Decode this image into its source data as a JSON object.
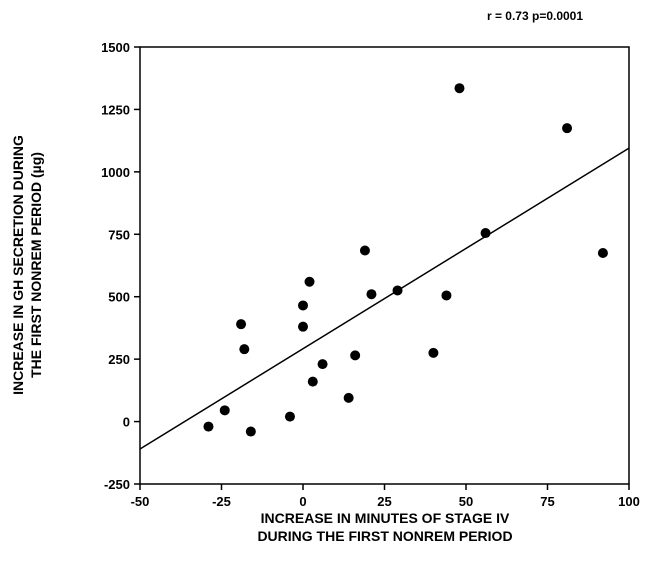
{
  "chart_data": {
    "type": "scatter",
    "annotation": "r = 0.73 p=0.0001",
    "xlabel_lines": [
      "INCREASE IN MINUTES OF STAGE IV",
      "DURING THE FIRST NONREM PERIOD"
    ],
    "ylabel_lines": [
      "INCREASE IN GH SECRETION DURING",
      "THE FIRST NONREM PERIOD (µg)"
    ],
    "xlim": [
      -50,
      100
    ],
    "ylim": [
      -250,
      1500
    ],
    "x_ticks": [
      -50,
      -25,
      0,
      25,
      50,
      75,
      100
    ],
    "x_tick_labels": [
      "-50",
      "-25",
      "0",
      "25",
      "50",
      "75",
      "100"
    ],
    "y_ticks": [
      -250,
      0,
      250,
      500,
      750,
      1000,
      1250,
      1500
    ],
    "y_tick_labels": [
      "-250",
      "0",
      "250",
      "500",
      "750",
      "1000",
      "1250",
      "1500"
    ],
    "points": [
      {
        "x": -29,
        "y": -20
      },
      {
        "x": -24,
        "y": 45
      },
      {
        "x": -19,
        "y": 390
      },
      {
        "x": -18,
        "y": 290
      },
      {
        "x": -16,
        "y": -40
      },
      {
        "x": -4,
        "y": 20
      },
      {
        "x": 0,
        "y": 465
      },
      {
        "x": 0,
        "y": 380
      },
      {
        "x": 2,
        "y": 560
      },
      {
        "x": 3,
        "y": 160
      },
      {
        "x": 6,
        "y": 230
      },
      {
        "x": 14,
        "y": 95
      },
      {
        "x": 16,
        "y": 265
      },
      {
        "x": 19,
        "y": 685
      },
      {
        "x": 21,
        "y": 510
      },
      {
        "x": 29,
        "y": 525
      },
      {
        "x": 40,
        "y": 275
      },
      {
        "x": 44,
        "y": 505
      },
      {
        "x": 48,
        "y": 1335
      },
      {
        "x": 56,
        "y": 755
      },
      {
        "x": 81,
        "y": 1175
      },
      {
        "x": 92,
        "y": 675
      }
    ],
    "regression_line": {
      "x": [
        -50,
        100
      ],
      "y": [
        -110,
        1095
      ]
    },
    "grid": false,
    "colors": {
      "points": "#000000",
      "line": "#000000",
      "axes": "#000000"
    }
  }
}
